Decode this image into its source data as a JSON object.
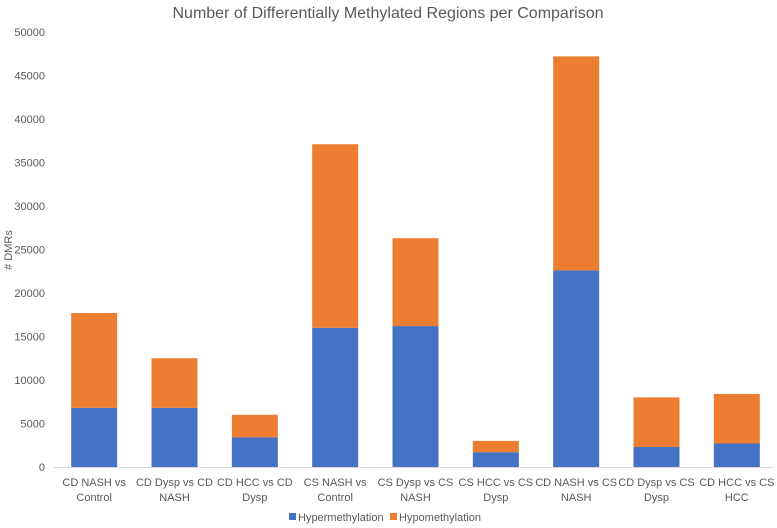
{
  "chart_data": {
    "type": "bar",
    "stacked": true,
    "title": "Number of Differentially Methylated Regions per Comparison",
    "xlabel": "",
    "ylabel": "# DMRs",
    "ylim": [
      0,
      50000
    ],
    "yticks": [
      "0",
      "5000",
      "10000",
      "15000",
      "20000",
      "25000",
      "30000",
      "35000",
      "40000",
      "45000",
      "50000"
    ],
    "categories": [
      [
        "CD NASH vs",
        "Control"
      ],
      [
        "CD Dysp vs CD",
        "NASH"
      ],
      [
        "CD HCC vs CD",
        "Dysp"
      ],
      [
        "CS NASH vs",
        "Control"
      ],
      [
        "CS Dysp vs CS",
        "NASH"
      ],
      [
        "CS HCC vs CS",
        "Dysp"
      ],
      [
        "CD NASH vs CS",
        "NASH"
      ],
      [
        "CD Dysp vs CS",
        "Dysp"
      ],
      [
        "CD HCC vs CS",
        "HCC"
      ]
    ],
    "series": [
      {
        "name": "Hypermethylation",
        "color": "#4472C4",
        "values": [
          6800,
          6800,
          3400,
          16000,
          16200,
          1700,
          22600,
          2300,
          2700
        ]
      },
      {
        "name": "Hypomethylation",
        "color": "#ED7D31",
        "values": [
          10900,
          5700,
          2600,
          21100,
          10100,
          1300,
          24600,
          5700,
          5700
        ]
      }
    ],
    "legend_position": "bottom",
    "grid": false
  }
}
